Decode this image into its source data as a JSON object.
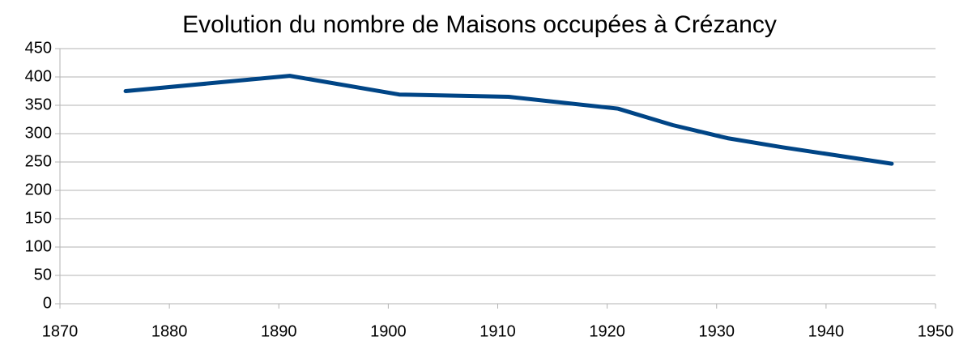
{
  "chart_data": {
    "type": "line",
    "title": "Evolution du nombre de Maisons occupées à Crézancy",
    "x": [
      1876,
      1891,
      1901,
      1911,
      1921,
      1926,
      1931,
      1936,
      1946
    ],
    "series": [
      {
        "name": "Maisons occupées",
        "color": "#004586",
        "values": [
          375,
          402,
          369,
          365,
          344,
          315,
          292,
          276,
          247
        ]
      }
    ],
    "xlim": [
      1870,
      1950
    ],
    "xticks": [
      1870,
      1880,
      1890,
      1900,
      1910,
      1920,
      1930,
      1940,
      1950
    ],
    "ylim": [
      0,
      450
    ],
    "yticks": [
      0,
      50,
      100,
      150,
      200,
      250,
      300,
      350,
      400,
      450
    ],
    "grid": true
  }
}
